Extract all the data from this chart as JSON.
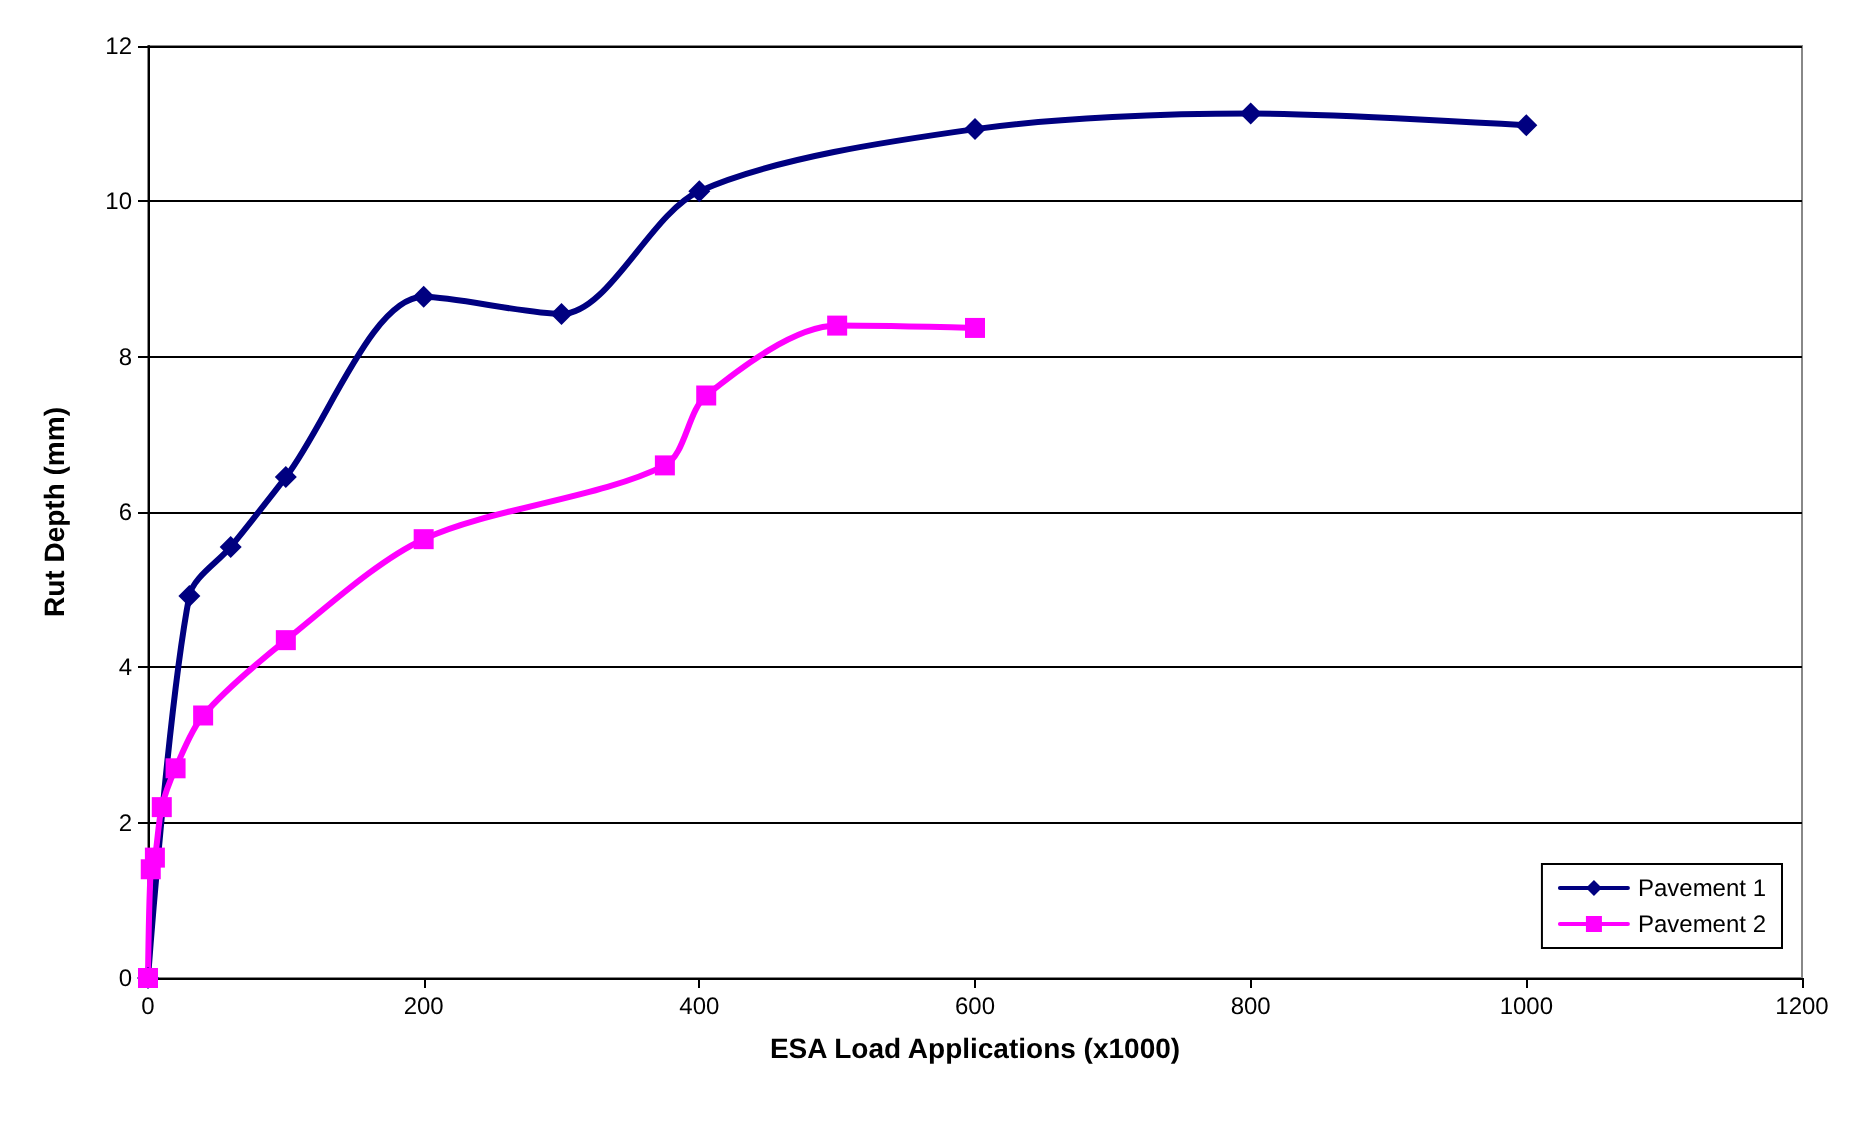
{
  "chart_data": {
    "type": "line",
    "xlabel": "ESA Load Applications (x1000)",
    "ylabel": "Rut Depth (mm)",
    "series": [
      {
        "name": "Pavement 1",
        "color": "#000080",
        "marker": "diamond",
        "x": [
          0,
          30,
          60,
          100,
          200,
          300,
          400,
          600,
          800,
          1000
        ],
        "values": [
          0,
          4.92,
          5.55,
          6.45,
          8.77,
          8.55,
          10.13,
          10.93,
          11.13,
          10.98
        ]
      },
      {
        "name": "Pavement 2",
        "color": "#ff00ff",
        "marker": "square",
        "x": [
          0,
          2,
          5,
          10,
          20,
          40,
          100,
          200,
          375,
          405,
          500,
          600
        ],
        "values": [
          0,
          1.4,
          1.55,
          2.2,
          2.7,
          3.38,
          4.35,
          5.65,
          6.6,
          7.5,
          8.4,
          8.37
        ]
      }
    ],
    "xlim": [
      0,
      1200
    ],
    "xticks": [
      0,
      200,
      400,
      600,
      800,
      1000,
      1200
    ],
    "ylim": [
      0,
      12
    ],
    "yticks": [
      0,
      2,
      4,
      6,
      8,
      10,
      12
    ],
    "grid": "y",
    "legend": "bottom right"
  }
}
